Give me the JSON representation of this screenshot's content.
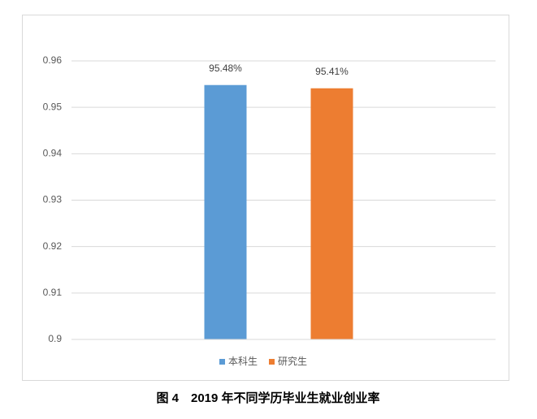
{
  "chart_data": {
    "type": "bar",
    "title": "图 4　2019 年不同学历毕业生就业创业率",
    "categories": [
      null
    ],
    "series": [
      {
        "name": "本科生",
        "color": "#5b9bd5",
        "values": [
          0.9548
        ],
        "value_labels": [
          "95.48%"
        ]
      },
      {
        "name": "研究生",
        "color": "#ed7d31",
        "values": [
          0.9541
        ],
        "value_labels": [
          "95.41%"
        ]
      }
    ],
    "ylim": [
      0.9,
      0.96
    ],
    "yticks": [
      0.9,
      0.91,
      0.92,
      0.93,
      0.94,
      0.95,
      0.96
    ],
    "grid": true,
    "legend": "bottom"
  }
}
